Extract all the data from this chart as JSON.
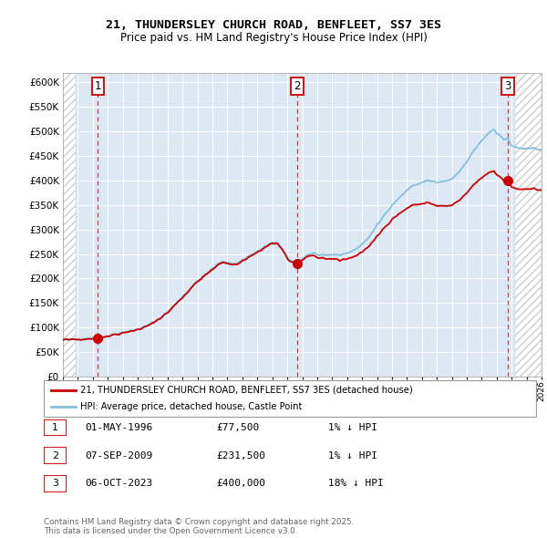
{
  "title": "21, THUNDERSLEY CHURCH ROAD, BENFLEET, SS7 3ES",
  "subtitle": "Price paid vs. HM Land Registry's House Price Index (HPI)",
  "background_color": "#ffffff",
  "plot_bg_color": "#dce9f5",
  "hpi_line_color": "#85bfde",
  "price_line_color": "#cc0000",
  "sale_marker_color": "#cc0000",
  "sale_marker_size": 7,
  "ylim": [
    0,
    620000
  ],
  "yticks": [
    0,
    50000,
    100000,
    150000,
    200000,
    250000,
    300000,
    350000,
    400000,
    450000,
    500000,
    550000,
    600000
  ],
  "sales": [
    {
      "date": 1996.33,
      "price": 77500,
      "label": "1"
    },
    {
      "date": 2009.67,
      "price": 231500,
      "label": "2"
    },
    {
      "date": 2023.75,
      "price": 400000,
      "label": "3"
    }
  ],
  "vline_dates": [
    1996.33,
    2009.67,
    2023.75
  ],
  "legend_line_label": "21, THUNDERSLEY CHURCH ROAD, BENFLEET, SS7 3ES (detached house)",
  "legend_hpi_label": "HPI: Average price, detached house, Castle Point",
  "table_rows": [
    {
      "num": "1",
      "date": "01-MAY-1996",
      "price": "£77,500",
      "hpi": "1% ↓ HPI"
    },
    {
      "num": "2",
      "date": "07-SEP-2009",
      "price": "£231,500",
      "hpi": "1% ↓ HPI"
    },
    {
      "num": "3",
      "date": "06-OCT-2023",
      "price": "£400,000",
      "hpi": "18% ↓ HPI"
    }
  ],
  "footer": "Contains HM Land Registry data © Crown copyright and database right 2025.\nThis data is licensed under the Open Government Licence v3.0.",
  "xmin": 1994,
  "xmax": 2026,
  "hatch_xmin": 1994.0,
  "hatch_xmax1": 1994.83,
  "hatch_xmin2": 2024.25,
  "hatch_xmax2": 2026.0,
  "data_xstart": 1994.83,
  "data_xend": 2024.25
}
